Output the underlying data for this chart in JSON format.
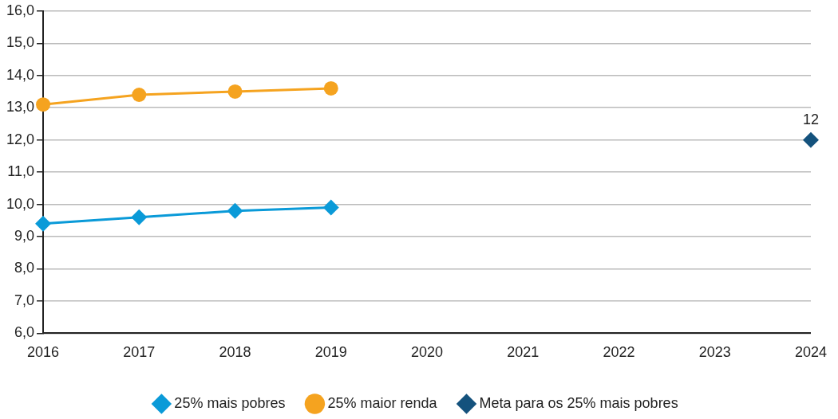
{
  "chart_data": {
    "type": "line",
    "categories": [
      "2016",
      "2017",
      "2018",
      "2019",
      "2020",
      "2021",
      "2022",
      "2023",
      "2024"
    ],
    "series": [
      {
        "name": "25% mais pobres",
        "color": "#0a9ad8",
        "marker": "diamond",
        "values": [
          9.4,
          9.6,
          9.8,
          9.9,
          null,
          null,
          null,
          null,
          null
        ]
      },
      {
        "name": "25% maior renda",
        "color": "#f5a31f",
        "marker": "circle",
        "values": [
          13.1,
          13.4,
          13.5,
          13.6,
          null,
          null,
          null,
          null,
          null
        ]
      },
      {
        "name": "Meta para os 25% mais pobres",
        "type": "scatter",
        "color": "#14527d",
        "marker": "diamond",
        "values": [
          null,
          null,
          null,
          null,
          null,
          null,
          null,
          null,
          12
        ],
        "value_labels": [
          null,
          null,
          null,
          null,
          null,
          null,
          null,
          null,
          "12"
        ]
      }
    ],
    "ylim": [
      6,
      16
    ],
    "yticks": [
      {
        "value": 6,
        "label": "6,0"
      },
      {
        "value": 7,
        "label": "7,0"
      },
      {
        "value": 8,
        "label": "8,0"
      },
      {
        "value": 9,
        "label": "9,0"
      },
      {
        "value": 10,
        "label": "10,0"
      },
      {
        "value": 11,
        "label": "11,0"
      },
      {
        "value": 12,
        "label": "12,0"
      },
      {
        "value": 13,
        "label": "13,0"
      },
      {
        "value": 14,
        "label": "14,0"
      },
      {
        "value": 15,
        "label": "15,0"
      },
      {
        "value": 16,
        "label": "16,0"
      }
    ],
    "grid": "y",
    "legend": "bottom",
    "line_style": "solid"
  }
}
